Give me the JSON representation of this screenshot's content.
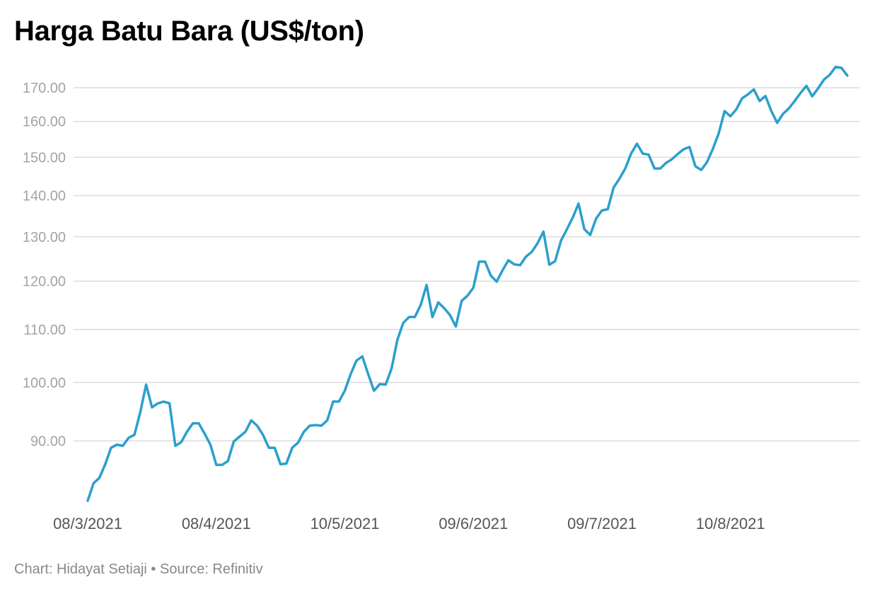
{
  "chart_data": {
    "type": "line",
    "title": "Harga Batu Bara (US$/ton)",
    "xlabel": "",
    "ylabel": "",
    "y_scale": "log",
    "ylim": [
      80,
      178
    ],
    "y_ticks": [
      "90.00",
      "100.00",
      "110.00",
      "120.00",
      "130.00",
      "140.00",
      "150.00",
      "160.00",
      "170.00"
    ],
    "x_ticks": [
      "08/3/2021",
      "08/4/2021",
      "10/5/2021",
      "09/6/2021",
      "09/7/2021",
      "10/8/2021"
    ],
    "x_tick_index": [
      0,
      22,
      44,
      66,
      88,
      110
    ],
    "grid": true,
    "legend": "none",
    "color": "#2b9fcd",
    "series": [
      {
        "values": [
          80.8,
          83.4,
          84.2,
          86.3,
          88.9,
          89.4,
          89.2,
          90.5,
          91.0,
          94.8,
          99.6,
          95.6,
          96.3,
          96.6,
          96.3,
          89.2,
          89.8,
          91.5,
          92.9,
          92.9,
          91.2,
          89.4,
          86.2,
          86.2,
          86.8,
          89.9,
          90.7,
          91.5,
          93.4,
          92.5,
          91.0,
          88.9,
          88.9,
          86.3,
          86.4,
          88.9,
          89.7,
          91.5,
          92.5,
          92.6,
          92.5,
          93.4,
          96.6,
          96.6,
          98.5,
          101.5,
          104.0,
          104.8,
          101.5,
          98.5,
          99.7,
          99.6,
          102.5,
          108.0,
          111.3,
          112.5,
          112.5,
          115.0,
          119.2,
          112.5,
          115.5,
          114.3,
          112.9,
          110.6,
          115.8,
          116.9,
          118.6,
          124.3,
          124.3,
          121.2,
          119.9,
          122.4,
          124.6,
          123.7,
          123.5,
          125.4,
          126.5,
          128.5,
          131.2,
          123.6,
          124.4,
          129.1,
          131.7,
          134.5,
          138.0,
          131.8,
          130.4,
          134.3,
          136.3,
          136.6,
          142.0,
          144.3,
          147.0,
          151.0,
          153.7,
          151.0,
          150.7,
          147.0,
          147.0,
          148.5,
          149.5,
          150.9,
          152.2,
          152.8,
          147.6,
          146.6,
          148.7,
          152.3,
          156.6,
          163.0,
          161.5,
          163.5,
          166.8,
          168.0,
          169.5,
          166.0,
          167.5,
          163.0,
          159.6,
          162.2,
          163.8,
          166.0,
          168.4,
          170.6,
          167.4,
          169.8,
          172.5,
          174.0,
          176.5,
          176.2,
          173.8
        ]
      }
    ]
  },
  "footer": "Chart: Hidayat Setiaji • Source: Refinitiv"
}
